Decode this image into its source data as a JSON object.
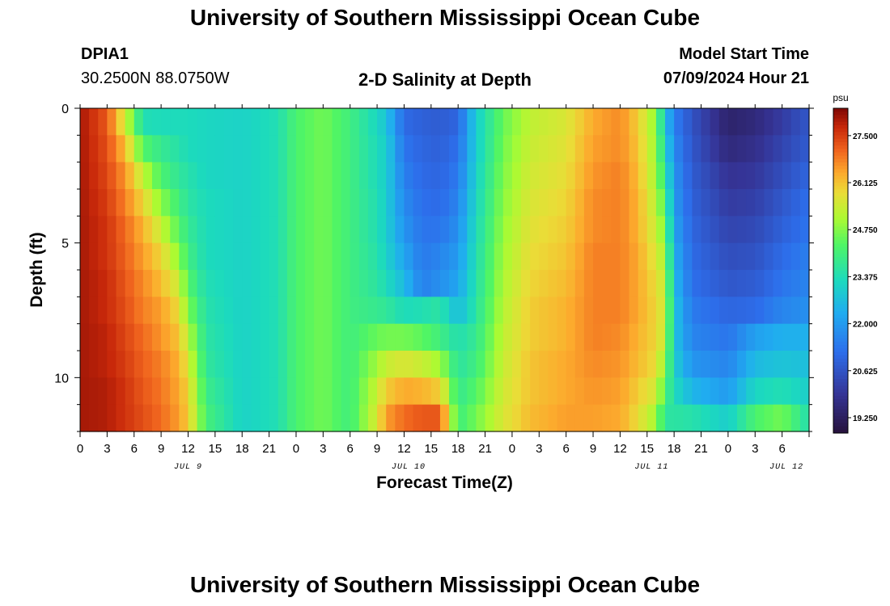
{
  "page": {
    "title": "University of Southern Mississippi Ocean Cube",
    "footer_title": "University of Southern Mississippi Ocean Cube"
  },
  "header": {
    "station": "DPIA1",
    "coords": "30.2500N  88.0750W",
    "subtitle": "2-D Salinity at Depth",
    "model_start_label": "Model Start Time",
    "model_start_value": "07/09/2024 Hour 21"
  },
  "chart_data": {
    "type": "heatmap",
    "title": "2-D Salinity at Depth",
    "xlabel": "Forecast Time(Z)",
    "ylabel": "Depth (ft)",
    "x_hours_range": [
      0,
      81
    ],
    "y_range_ft": [
      0,
      12
    ],
    "x_tick_labels": [
      "0",
      "3",
      "6",
      "9",
      "12",
      "15",
      "18",
      "21",
      "0",
      "3",
      "6",
      "9",
      "12",
      "15",
      "18",
      "21",
      "0",
      "3",
      "6",
      "9",
      "12",
      "15",
      "18",
      "21",
      "0",
      "3",
      "6"
    ],
    "y_tick_labels": [
      "0",
      "5",
      "10"
    ],
    "y_tick_values": [
      0,
      5,
      10
    ],
    "date_labels": [
      {
        "text": "JUL 9",
        "hour": 12
      },
      {
        "text": "JUL 10",
        "hour": 36.5
      },
      {
        "text": "JUL 11",
        "hour": 63.5
      },
      {
        "text": "JUL 12",
        "hour": 78.5
      }
    ],
    "colorbar": {
      "unit": "psu",
      "min": 18.8,
      "max": 28.3,
      "tick_labels": [
        "27.500",
        "26.125",
        "24.750",
        "23.375",
        "22.000",
        "20.625",
        "19.250"
      ],
      "tick_values": [
        27.5,
        26.125,
        24.75,
        23.375,
        22.0,
        20.625,
        19.25
      ]
    },
    "depth_levels_ft": [
      0.5,
      1.5,
      2.5,
      3.5,
      4.5,
      5.5,
      6.5,
      7.5,
      8.5,
      9.5,
      10.5,
      11.5
    ],
    "salinity_by_time": [
      {
        "hour": 0,
        "psu": [
          28.0,
          28.0,
          28.0,
          28.0,
          28.0,
          28.0,
          28.0,
          28.0,
          28.0,
          28.0,
          28.0,
          28.0
        ]
      },
      {
        "hour": 3,
        "psu": [
          27.2,
          27.3,
          27.4,
          27.5,
          27.6,
          27.6,
          27.7,
          27.7,
          27.8,
          27.8,
          27.9,
          27.9
        ]
      },
      {
        "hour": 5,
        "psu": [
          25.5,
          26.2,
          26.6,
          26.8,
          27.0,
          27.1,
          27.2,
          27.3,
          27.4,
          27.5,
          27.6,
          27.6
        ]
      },
      {
        "hour": 7,
        "psu": [
          23.4,
          24.3,
          25.3,
          25.9,
          26.3,
          26.5,
          26.7,
          26.8,
          27.0,
          27.1,
          27.2,
          27.3
        ]
      },
      {
        "hour": 9,
        "psu": [
          23.3,
          23.8,
          24.2,
          24.8,
          25.4,
          25.9,
          26.2,
          26.5,
          26.6,
          26.8,
          26.9,
          27.0
        ]
      },
      {
        "hour": 11,
        "psu": [
          23.3,
          23.5,
          23.7,
          24.0,
          24.3,
          24.8,
          25.4,
          25.8,
          26.1,
          26.3,
          26.4,
          26.5
        ]
      },
      {
        "hour": 12,
        "psu": [
          23.3,
          23.3,
          23.5,
          23.6,
          23.8,
          24.0,
          24.3,
          24.7,
          25.2,
          25.6,
          25.9,
          26.0
        ]
      },
      {
        "hour": 14,
        "psu": [
          23.2,
          23.2,
          23.2,
          23.3,
          23.3,
          23.3,
          23.4,
          23.5,
          23.6,
          23.7,
          23.9,
          24.1
        ]
      },
      {
        "hour": 18,
        "psu": [
          23.1,
          23.1,
          23.1,
          23.1,
          23.1,
          23.1,
          23.1,
          23.1,
          23.1,
          23.1,
          23.1,
          23.1
        ]
      },
      {
        "hour": 22,
        "psu": [
          23.4,
          23.4,
          23.4,
          23.4,
          23.4,
          23.4,
          23.4,
          23.4,
          23.4,
          23.4,
          23.4,
          23.4
        ]
      },
      {
        "hour": 24,
        "psu": [
          24.2,
          24.2,
          24.2,
          24.2,
          24.2,
          24.2,
          24.2,
          24.2,
          24.2,
          24.2,
          24.2,
          24.2
        ]
      },
      {
        "hour": 27,
        "psu": [
          24.6,
          24.6,
          24.6,
          24.6,
          24.6,
          24.6,
          24.6,
          24.6,
          24.6,
          24.6,
          24.6,
          24.6
        ]
      },
      {
        "hour": 30,
        "psu": [
          24.0,
          24.0,
          24.0,
          24.0,
          24.0,
          24.0,
          24.0,
          24.0,
          24.0,
          24.0,
          24.0,
          24.0
        ]
      },
      {
        "hour": 33,
        "psu": [
          23.2,
          23.3,
          23.3,
          23.4,
          23.4,
          23.5,
          23.6,
          23.8,
          24.5,
          25.0,
          25.4,
          25.6
        ]
      },
      {
        "hour": 34,
        "psu": [
          22.8,
          23.0,
          23.0,
          23.0,
          23.0,
          23.1,
          23.3,
          23.7,
          24.6,
          25.4,
          26.0,
          26.5
        ]
      },
      {
        "hour": 36,
        "psu": [
          21.1,
          21.3,
          21.5,
          21.7,
          21.9,
          22.2,
          22.6,
          23.3,
          24.6,
          25.6,
          26.4,
          27.0
        ]
      },
      {
        "hour": 38,
        "psu": [
          20.9,
          21.0,
          21.1,
          21.2,
          21.3,
          21.4,
          21.5,
          23.4,
          24.4,
          25.4,
          26.3,
          27.2
        ]
      },
      {
        "hour": 40,
        "psu": [
          20.8,
          20.9,
          21.0,
          21.1,
          21.3,
          21.6,
          21.8,
          23.6,
          24.0,
          25.0,
          26.0,
          27.2
        ]
      },
      {
        "hour": 42,
        "psu": [
          21.0,
          21.2,
          21.4,
          21.6,
          21.8,
          22.0,
          22.2,
          22.6,
          23.4,
          23.6,
          23.8,
          24.0
        ]
      },
      {
        "hour": 44,
        "psu": [
          23.0,
          23.0,
          23.1,
          23.2,
          23.3,
          23.4,
          23.5,
          23.6,
          23.8,
          24.0,
          24.3,
          24.6
        ]
      },
      {
        "hour": 47,
        "psu": [
          24.5,
          24.6,
          24.7,
          24.8,
          24.9,
          25.0,
          25.1,
          25.2,
          25.3,
          25.4,
          25.5,
          25.6
        ]
      },
      {
        "hour": 50,
        "psu": [
          25.3,
          25.4,
          25.5,
          25.6,
          25.7,
          25.8,
          25.9,
          26.0,
          26.0,
          26.1,
          26.1,
          26.2
        ]
      },
      {
        "hour": 54,
        "psu": [
          25.6,
          25.7,
          25.8,
          25.9,
          26.0,
          26.1,
          26.2,
          26.3,
          26.3,
          26.4,
          26.4,
          26.5
        ]
      },
      {
        "hour": 57,
        "psu": [
          26.4,
          26.5,
          26.6,
          26.7,
          26.7,
          26.8,
          26.8,
          26.8,
          26.8,
          26.7,
          26.6,
          26.5
        ]
      },
      {
        "hour": 60,
        "psu": [
          26.7,
          26.7,
          26.8,
          26.8,
          26.8,
          26.8,
          26.8,
          26.8,
          26.7,
          26.6,
          26.5,
          26.4
        ]
      },
      {
        "hour": 62,
        "psu": [
          26.0,
          26.1,
          26.2,
          26.3,
          26.3,
          26.4,
          26.4,
          26.4,
          26.3,
          26.2,
          26.0,
          25.8
        ]
      },
      {
        "hour": 64,
        "psu": [
          24.8,
          24.9,
          25.0,
          25.2,
          25.4,
          25.6,
          25.8,
          25.9,
          25.9,
          25.8,
          25.5,
          25.0
        ]
      },
      {
        "hour": 65,
        "psu": [
          22.8,
          23.2,
          23.7,
          24.2,
          24.6,
          25.0,
          25.3,
          25.4,
          25.3,
          24.8,
          24.2,
          23.6
        ]
      },
      {
        "hour": 66,
        "psu": [
          21.5,
          21.7,
          21.9,
          22.0,
          22.2,
          22.4,
          22.6,
          22.8,
          22.8,
          23.0,
          23.3,
          23.6
        ]
      },
      {
        "hour": 68,
        "psu": [
          20.6,
          20.7,
          20.8,
          20.9,
          21.0,
          21.1,
          21.2,
          21.4,
          21.6,
          21.9,
          22.5,
          23.5
        ]
      },
      {
        "hour": 72,
        "psu": [
          19.4,
          19.6,
          19.9,
          20.1,
          20.3,
          20.5,
          20.7,
          21.0,
          21.3,
          21.6,
          22.0,
          23.0
        ]
      },
      {
        "hour": 75,
        "psu": [
          19.6,
          19.8,
          20.0,
          20.2,
          20.4,
          20.6,
          20.8,
          21.1,
          22.1,
          22.6,
          23.2,
          24.2
        ]
      },
      {
        "hour": 78,
        "psu": [
          20.1,
          20.3,
          20.5,
          20.7,
          20.9,
          21.1,
          21.3,
          21.6,
          22.4,
          22.8,
          23.4,
          24.6
        ]
      },
      {
        "hour": 81,
        "psu": [
          20.7,
          20.8,
          21.0,
          21.2,
          21.3,
          21.5,
          21.6,
          21.8,
          22.4,
          22.7,
          23.0,
          23.4
        ]
      }
    ]
  }
}
